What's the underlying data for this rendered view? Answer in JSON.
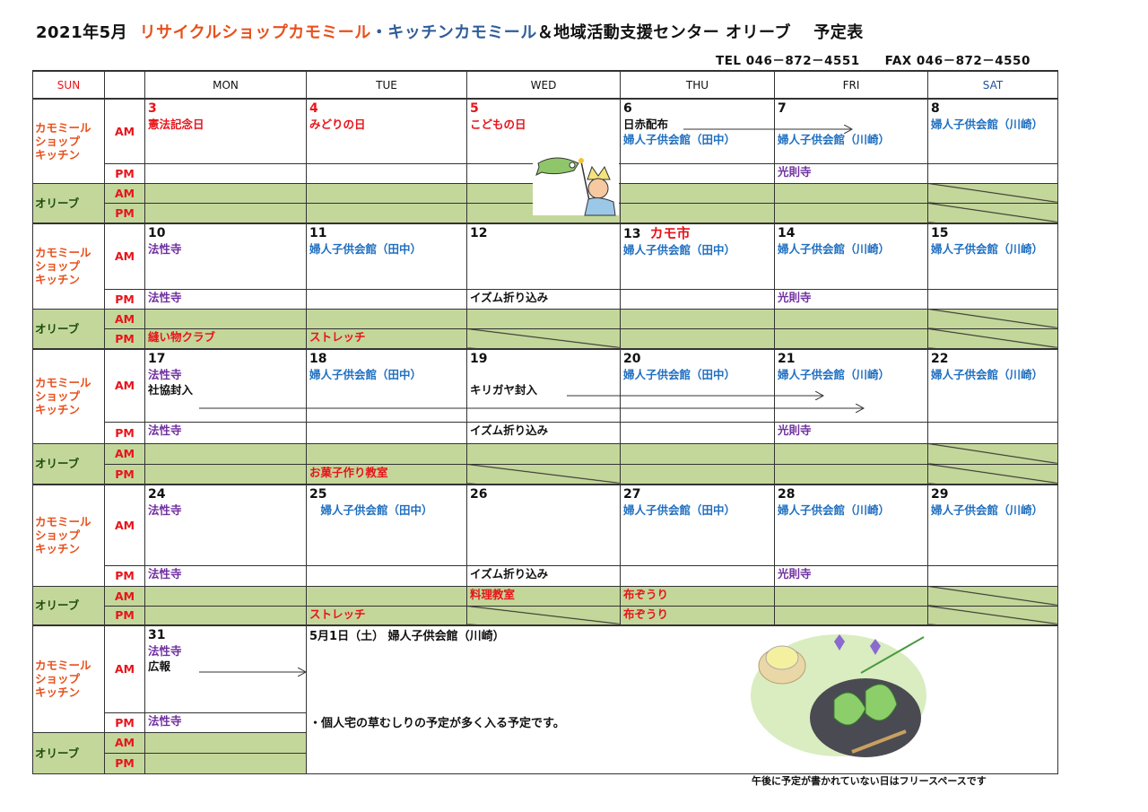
{
  "header": {
    "title_prefix": "2021年5月",
    "title_red": "リサイクルショップカモミール",
    "title_blue": "・キッチンカモミール",
    "title_suffix": "＆地域活動支援センター オリーブ　 予定表",
    "tel": "TEL 046－872－4551",
    "fax": "FAX 046－872－4550"
  },
  "colors": {
    "red": "#e8141a",
    "blue": "#1f6fc0",
    "purple": "#7030a0",
    "black": "#111111",
    "orange": "#e8501c",
    "olive_bg": "#c4d79b",
    "olive_text": "#1e4d0e",
    "sat": "#1f4e9a"
  },
  "columns": [
    "SUN",
    "",
    "MON",
    "TUE",
    "WED",
    "THU",
    "FRI",
    "SAT"
  ],
  "labels": {
    "kamomile": [
      "カモミール",
      "ショップ",
      "キッチン"
    ],
    "olive": "オリーブ",
    "am": "AM",
    "pm": "PM"
  },
  "weeks": [
    {
      "days": [
        {
          "day": "3",
          "day_color": "red",
          "am": [
            {
              "t": "憲法記念日",
              "c": "red"
            }
          ],
          "pm": [],
          "oam": [],
          "opm": []
        },
        {
          "day": "4",
          "day_color": "red",
          "am": [
            {
              "t": "みどりの日",
              "c": "red"
            }
          ],
          "pm": [],
          "oam": [],
          "opm": []
        },
        {
          "day": "5",
          "day_color": "red",
          "am": [
            {
              "t": "こどもの日",
              "c": "red"
            }
          ],
          "pm": [],
          "oam": [],
          "opm": []
        },
        {
          "day": "6",
          "am": [
            {
              "t": "日赤配布",
              "c": "black"
            },
            {
              "t": "婦人子供会館（田中）",
              "c": "blue"
            }
          ],
          "pm": [],
          "oam": [],
          "opm": []
        },
        {
          "day": "7",
          "am": [
            {
              "t": "",
              "c": "black"
            },
            {
              "t": "婦人子供会館（川崎）",
              "c": "blue"
            }
          ],
          "pm": [
            {
              "t": "光則寺",
              "c": "purple"
            }
          ],
          "oam": [],
          "opm": []
        },
        {
          "day": "8",
          "am": [
            {
              "t": "婦人子供会館（川崎）",
              "c": "blue"
            }
          ],
          "pm": [],
          "oam": [],
          "opm": [],
          "diag_am": true,
          "diag_pm": true
        }
      ]
    },
    {
      "days": [
        {
          "day": "10",
          "am": [
            {
              "t": "法性寺",
              "c": "purple"
            }
          ],
          "pm": [
            {
              "t": "法性寺",
              "c": "purple"
            }
          ],
          "oam": [],
          "opm": [
            {
              "t": "縫い物クラブ",
              "c": "red"
            }
          ]
        },
        {
          "day": "11",
          "am": [
            {
              "t": "婦人子供会館（田中）",
              "c": "blue"
            }
          ],
          "pm": [],
          "oam": [],
          "opm": [
            {
              "t": "ストレッチ",
              "c": "red"
            }
          ]
        },
        {
          "day": "12",
          "am": [],
          "pm": [
            {
              "t": "イズム折り込み",
              "c": "black"
            }
          ],
          "oam": [],
          "opm": [],
          "diag_pm": true
        },
        {
          "day": "13",
          "day_extra": "カモ市",
          "am": [
            {
              "t": "婦人子供会館（田中）",
              "c": "blue"
            }
          ],
          "pm": [],
          "oam": [],
          "opm": []
        },
        {
          "day": "14",
          "am": [
            {
              "t": "婦人子供会館（川崎）",
              "c": "blue"
            }
          ],
          "pm": [
            {
              "t": "光則寺",
              "c": "purple"
            }
          ],
          "oam": [],
          "opm": []
        },
        {
          "day": "15",
          "am": [
            {
              "t": "婦人子供会館（川崎）",
              "c": "blue"
            }
          ],
          "pm": [],
          "oam": [],
          "opm": [],
          "diag_am": true,
          "diag_pm": true
        }
      ]
    },
    {
      "days": [
        {
          "day": "17",
          "am": [
            {
              "t": "法性寺",
              "c": "purple"
            },
            {
              "t": "社協封入",
              "c": "black"
            }
          ],
          "pm": [
            {
              "t": "法性寺",
              "c": "purple"
            }
          ],
          "oam": [],
          "opm": []
        },
        {
          "day": "18",
          "am": [
            {
              "t": "婦人子供会館（田中）",
              "c": "blue"
            }
          ],
          "pm": [],
          "oam": [],
          "opm": [
            {
              "t": "お菓子作り教室",
              "c": "red"
            }
          ]
        },
        {
          "day": "19",
          "am": [
            {
              "t": "",
              "c": "black"
            },
            {
              "t": "キリガヤ封入",
              "c": "black"
            }
          ],
          "pm": [
            {
              "t": "イズム折り込み",
              "c": "black"
            }
          ],
          "oam": [],
          "opm": [],
          "diag_pm": true
        },
        {
          "day": "20",
          "am": [
            {
              "t": "婦人子供会館（田中）",
              "c": "blue"
            }
          ],
          "pm": [],
          "oam": [],
          "opm": []
        },
        {
          "day": "21",
          "am": [
            {
              "t": "婦人子供会館（川崎）",
              "c": "blue"
            }
          ],
          "pm": [
            {
              "t": "光則寺",
              "c": "purple"
            }
          ],
          "oam": [],
          "opm": []
        },
        {
          "day": "22",
          "am": [
            {
              "t": "婦人子供会館（川崎）",
              "c": "blue"
            }
          ],
          "pm": [],
          "oam": [],
          "opm": [],
          "diag_am": true,
          "diag_pm": true
        }
      ]
    },
    {
      "days": [
        {
          "day": "24",
          "am": [
            {
              "t": "法性寺",
              "c": "purple"
            }
          ],
          "pm": [
            {
              "t": "法性寺",
              "c": "purple"
            }
          ],
          "oam": [],
          "opm": []
        },
        {
          "day": "25",
          "am": [
            {
              "t": "　婦人子供会館（田中）",
              "c": "blue"
            }
          ],
          "pm": [],
          "oam": [],
          "opm": [
            {
              "t": "ストレッチ",
              "c": "red"
            }
          ]
        },
        {
          "day": "26",
          "am": [],
          "pm": [
            {
              "t": "イズム折り込み",
              "c": "black"
            }
          ],
          "oam": [
            {
              "t": "料理教室",
              "c": "red"
            }
          ],
          "opm": [],
          "diag_pm": true
        },
        {
          "day": "27",
          "am": [
            {
              "t": "婦人子供会館（田中）",
              "c": "blue"
            }
          ],
          "pm": [],
          "oam": [
            {
              "t": "布ぞうり",
              "c": "red"
            }
          ],
          "opm": [
            {
              "t": "布ぞうり",
              "c": "red"
            }
          ]
        },
        {
          "day": "28",
          "am": [
            {
              "t": "婦人子供会館（川崎）",
              "c": "blue"
            }
          ],
          "pm": [
            {
              "t": "光則寺",
              "c": "purple"
            }
          ],
          "oam": [],
          "opm": []
        },
        {
          "day": "29",
          "am": [
            {
              "t": "婦人子供会館（川崎）",
              "c": "blue"
            }
          ],
          "pm": [],
          "oam": [],
          "opm": [],
          "diag_am": true,
          "diag_pm": true
        }
      ]
    }
  ],
  "last_week": {
    "day": {
      "day": "31",
      "am": [
        {
          "t": "法性寺",
          "c": "purple"
        },
        {
          "t": "広報",
          "c": "black"
        }
      ],
      "pm": [
        {
          "t": "法性寺",
          "c": "purple"
        }
      ]
    },
    "notes": [
      "5月1日（土） 婦人子供会館（川崎）",
      "・個人宅の草むしりの予定が多く入る予定です。"
    ]
  },
  "illustrations": [
    "koinobori-boy",
    "tea-and-kashiwa-mochi"
  ],
  "footer": "午後に予定が書かれていない日はフリースペースです"
}
